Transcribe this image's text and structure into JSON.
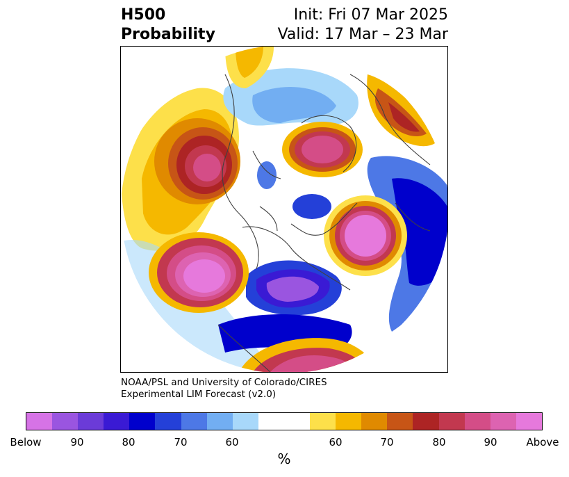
{
  "title": {
    "left_line1": "H500",
    "left_line2": "Probability",
    "init": "Init: Fri 07 Mar 2025",
    "valid": "Valid: 17 Mar – 23 Mar"
  },
  "credit": {
    "line1": "NOAA/PSL and University of Colorado/CIRES",
    "line2": "Experimental LIM Forecast (v2.0)"
  },
  "colorbar": {
    "colors": [
      "#d673e6",
      "#9a55e0",
      "#6b3bd8",
      "#3a1ad4",
      "#0000cc",
      "#2440d8",
      "#4d78e6",
      "#72aef2",
      "#a8d8fa",
      "#ffffff",
      "#ffffff",
      "#fde04a",
      "#f5b800",
      "#e08a00",
      "#c75516",
      "#ad2424",
      "#c2384f",
      "#d44d87",
      "#dd63b1",
      "#e679dc"
    ],
    "labels": [
      "Below",
      "90",
      "80",
      "70",
      "60",
      "60",
      "70",
      "80",
      "90",
      "Above"
    ],
    "unit": "%"
  }
}
